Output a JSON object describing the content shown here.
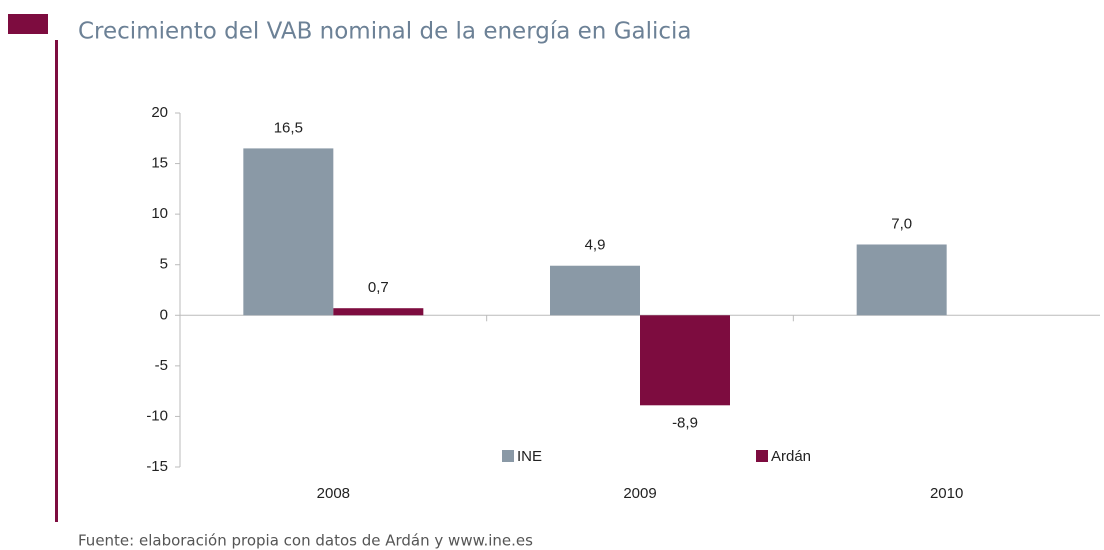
{
  "chart_data": {
    "type": "bar",
    "title": "Crecimiento del VAB nominal de la energía en Galicia",
    "categories": [
      "2008",
      "2009",
      "2010"
    ],
    "series": [
      {
        "name": "INE",
        "color": "#8a99a6",
        "values": [
          16.5,
          4.9,
          7.0
        ],
        "value_labels": [
          "16,5",
          "4,9",
          "7,0"
        ]
      },
      {
        "name": "Ardán",
        "color": "#7d0c3f",
        "values": [
          0.7,
          -8.9,
          null
        ],
        "value_labels": [
          "0,7",
          "-8,9",
          null
        ]
      }
    ],
    "ylim": [
      -15,
      20
    ],
    "yticks": [
      -15,
      -10,
      -5,
      0,
      5,
      10,
      15,
      20
    ],
    "grid": false,
    "legend": "bottom",
    "source": "Fuente: elaboración propia con datos de Ardán y www.ine.es"
  }
}
